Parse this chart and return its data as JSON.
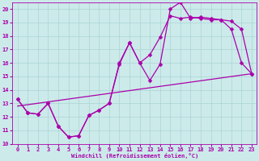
{
  "xlabel": "Windchill (Refroidissement éolien,°C)",
  "xlim": [
    -0.5,
    23.5
  ],
  "ylim": [
    10,
    20.5
  ],
  "xticks": [
    0,
    1,
    2,
    3,
    4,
    5,
    6,
    7,
    8,
    9,
    10,
    11,
    12,
    13,
    14,
    15,
    16,
    17,
    18,
    19,
    20,
    21,
    22,
    23
  ],
  "yticks": [
    10,
    11,
    12,
    13,
    14,
    15,
    16,
    17,
    18,
    19,
    20
  ],
  "background_color": "#cceaea",
  "grid_color": "#aad4d4",
  "line_color": "#aa00aa",
  "curve1_x": [
    0,
    1,
    2,
    3,
    4,
    5,
    6,
    7,
    8,
    9,
    10,
    11,
    12,
    13,
    14,
    15,
    16,
    17,
    18,
    19,
    20,
    21,
    22,
    23
  ],
  "curve1_y": [
    13.3,
    12.3,
    12.2,
    13.0,
    11.3,
    10.5,
    10.6,
    12.1,
    12.5,
    13.0,
    15.9,
    17.5,
    16.0,
    14.7,
    15.9,
    20.0,
    20.5,
    19.3,
    19.4,
    19.3,
    19.2,
    18.5,
    16.0,
    15.2
  ],
  "curve2_x": [
    0,
    1,
    2,
    3,
    4,
    5,
    6,
    7,
    8,
    9,
    10,
    11,
    12,
    13,
    14,
    15,
    16,
    17,
    18,
    19,
    20,
    21,
    22,
    23
  ],
  "curve2_y": [
    13.3,
    12.3,
    12.2,
    13.0,
    11.3,
    10.5,
    10.6,
    12.1,
    12.5,
    13.0,
    16.0,
    17.5,
    16.0,
    16.6,
    17.9,
    19.5,
    19.3,
    19.4,
    19.3,
    19.2,
    19.2,
    19.1,
    18.5,
    15.2
  ],
  "line3_x": [
    0,
    23
  ],
  "line3_y": [
    12.8,
    15.2
  ],
  "markersize": 2.5,
  "linewidth": 0.9
}
